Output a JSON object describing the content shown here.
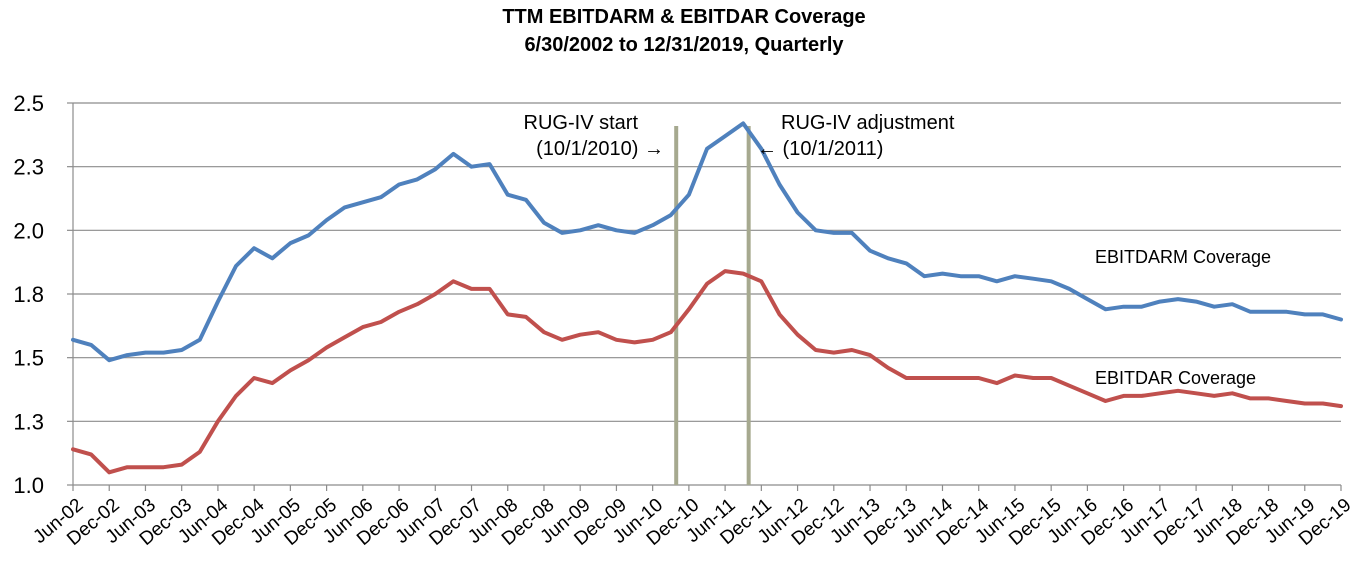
{
  "chart_data": {
    "type": "line",
    "title": "TTM EBITDARM & EBITDAR Coverage",
    "subtitle": "6/30/2002 to 12/31/2019, Quarterly",
    "xlabel": "",
    "ylabel": "",
    "ylim": [
      1.0,
      2.5
    ],
    "y_ticks": [
      "1.0",
      "1.3",
      "1.5",
      "1.8",
      "2.0",
      "2.3",
      "2.5"
    ],
    "x_tick_labels": [
      "Jun-02",
      "Dec-02",
      "Jun-03",
      "Dec-03",
      "Jun-04",
      "Dec-04",
      "Jun-05",
      "Dec-05",
      "Jun-06",
      "Dec-06",
      "Jun-07",
      "Dec-07",
      "Jun-08",
      "Dec-08",
      "Jun-09",
      "Dec-09",
      "Jun-10",
      "Dec-10",
      "Jun-11",
      "Dec-11",
      "Jun-12",
      "Dec-12",
      "Jun-13",
      "Dec-13",
      "Jun-14",
      "Dec-14",
      "Jun-15",
      "Dec-15",
      "Jun-16",
      "Dec-16",
      "Jun-17",
      "Dec-17",
      "Jun-18",
      "Dec-18",
      "Jun-19",
      "Dec-19"
    ],
    "grid": true,
    "series": [
      {
        "name": "EBITDARM Coverage",
        "color": "#4f81bd",
        "values": [
          1.57,
          1.55,
          1.49,
          1.51,
          1.52,
          1.52,
          1.53,
          1.57,
          1.72,
          1.86,
          1.93,
          1.89,
          1.95,
          1.98,
          2.04,
          2.09,
          2.11,
          2.13,
          2.18,
          2.2,
          2.24,
          2.3,
          2.25,
          2.26,
          2.14,
          2.12,
          2.03,
          1.99,
          2.0,
          2.02,
          2.0,
          1.99,
          2.02,
          2.06,
          2.14,
          2.32,
          2.37,
          2.42,
          2.32,
          2.18,
          2.07,
          2.0,
          1.99,
          1.99,
          1.92,
          1.89,
          1.87,
          1.82,
          1.83,
          1.82,
          1.82,
          1.8,
          1.82,
          1.81,
          1.8,
          1.77,
          1.73,
          1.69,
          1.7,
          1.7,
          1.72,
          1.73,
          1.72,
          1.7,
          1.71,
          1.68,
          1.68,
          1.68,
          1.67,
          1.67,
          1.65
        ]
      },
      {
        "name": "EBITDAR Coverage",
        "color": "#c0504d",
        "values": [
          1.14,
          1.12,
          1.05,
          1.07,
          1.07,
          1.07,
          1.08,
          1.13,
          1.25,
          1.35,
          1.42,
          1.4,
          1.45,
          1.49,
          1.54,
          1.58,
          1.62,
          1.64,
          1.68,
          1.71,
          1.75,
          1.8,
          1.77,
          1.77,
          1.67,
          1.66,
          1.6,
          1.57,
          1.59,
          1.6,
          1.57,
          1.56,
          1.57,
          1.6,
          1.69,
          1.79,
          1.84,
          1.83,
          1.8,
          1.67,
          1.59,
          1.53,
          1.52,
          1.53,
          1.51,
          1.46,
          1.42,
          1.42,
          1.42,
          1.42,
          1.42,
          1.4,
          1.43,
          1.42,
          1.42,
          1.39,
          1.36,
          1.33,
          1.35,
          1.35,
          1.36,
          1.37,
          1.36,
          1.35,
          1.36,
          1.34,
          1.34,
          1.33,
          1.32,
          1.32,
          1.31
        ]
      }
    ],
    "reference_lines": [
      {
        "x_index": 33.3,
        "label": "RUG-IV start",
        "sublabel": "(10/1/2010) →"
      },
      {
        "x_index": 37.3,
        "label": "RUG-IV adjustment",
        "sublabel": "← (10/1/2011)"
      }
    ],
    "reference_line_color": "#a6a98f",
    "legend": "inline-right"
  }
}
